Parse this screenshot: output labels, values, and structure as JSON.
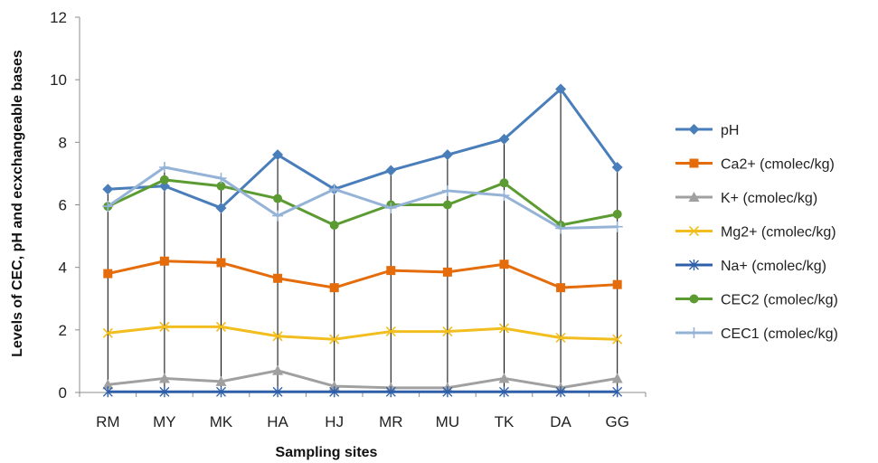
{
  "chart_data": {
    "type": "line",
    "xlabel": "Sampling sites",
    "ylabel": "Levels of CEC, pH and ecxchangeable bases",
    "categories": [
      "RM",
      "MY",
      "MK",
      "HA",
      "HJ",
      "MR",
      "MU",
      "TK",
      "DA",
      "GG"
    ],
    "ylim": [
      0,
      12
    ],
    "yticks": [
      0,
      2,
      4,
      6,
      8,
      10,
      12
    ],
    "grid": false,
    "legend_position": "right",
    "series": [
      {
        "name": "pH",
        "color": "#4a7ebb",
        "marker": "diamond",
        "values": [
          6.5,
          6.6,
          5.9,
          7.6,
          6.5,
          7.1,
          7.6,
          8.1,
          9.7,
          7.2
        ]
      },
      {
        "name": "Ca2+ (cmolec/kg)",
        "color": "#e46c0a",
        "marker": "square",
        "values": [
          3.8,
          4.2,
          4.15,
          3.65,
          3.35,
          3.9,
          3.85,
          4.1,
          3.35,
          3.45
        ]
      },
      {
        "name": "K+ (cmolec/kg)",
        "color": "#a0a0a0",
        "marker": "triangle",
        "values": [
          0.25,
          0.45,
          0.35,
          0.7,
          0.2,
          0.15,
          0.15,
          0.45,
          0.15,
          0.45
        ]
      },
      {
        "name": "Mg2+ (cmolec/kg)",
        "color": "#f2be1f",
        "marker": "x",
        "values": [
          1.9,
          2.1,
          2.1,
          1.8,
          1.7,
          1.95,
          1.95,
          2.05,
          1.75,
          1.7
        ]
      },
      {
        "name": "Na+ (cmolec/kg)",
        "color": "#2e5fa8",
        "marker": "star",
        "values": [
          0.02,
          0.02,
          0.02,
          0.02,
          0.02,
          0.02,
          0.02,
          0.02,
          0.02,
          0.02
        ]
      },
      {
        "name": "CEC2 (cmolec/kg)",
        "color": "#5b9b32",
        "marker": "circle",
        "values": [
          5.95,
          6.8,
          6.6,
          6.2,
          5.35,
          6.0,
          6.0,
          6.7,
          5.35,
          5.7
        ]
      },
      {
        "name": "CEC1 (cmolec/kg)",
        "color": "#95b3d7",
        "marker": "plus",
        "values": [
          5.95,
          7.2,
          6.85,
          5.65,
          6.5,
          5.9,
          6.45,
          6.3,
          5.25,
          5.3
        ]
      }
    ]
  }
}
